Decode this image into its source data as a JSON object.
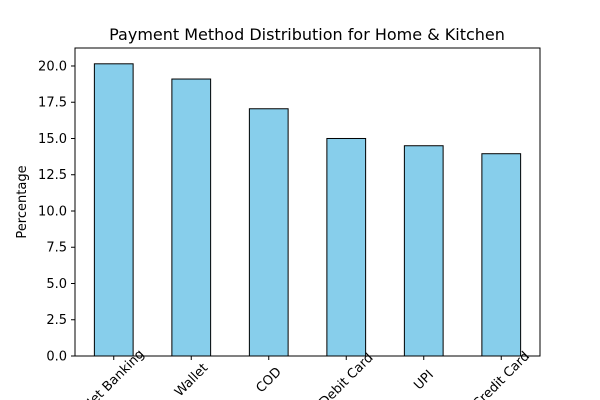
{
  "chart_data": {
    "type": "bar",
    "title": "Payment Method Distribution for Home & Kitchen",
    "y_label": "Percentage",
    "categories": [
      "Net Banking",
      "Wallet",
      "COD",
      "Debit Card",
      "UPI",
      "Credit Card"
    ],
    "values": [
      20.15,
      19.1,
      17.05,
      15.0,
      14.5,
      13.95
    ],
    "color": "#87ceeb",
    "edgecolor": "#000000",
    "ylim": [
      0,
      21.24
    ],
    "yticks": [
      {
        "value": 0,
        "label": "0.0"
      },
      {
        "value": 2.5,
        "label": "2.5"
      },
      {
        "value": 5,
        "label": "5.0"
      },
      {
        "value": 7.5,
        "label": "7.5"
      },
      {
        "value": 10,
        "label": "10.0"
      },
      {
        "value": 12.5,
        "label": "12.5"
      },
      {
        "value": 15,
        "label": "15.0"
      },
      {
        "value": 17.5,
        "label": "17.5"
      },
      {
        "value": 20,
        "label": "20.0"
      }
    ]
  }
}
